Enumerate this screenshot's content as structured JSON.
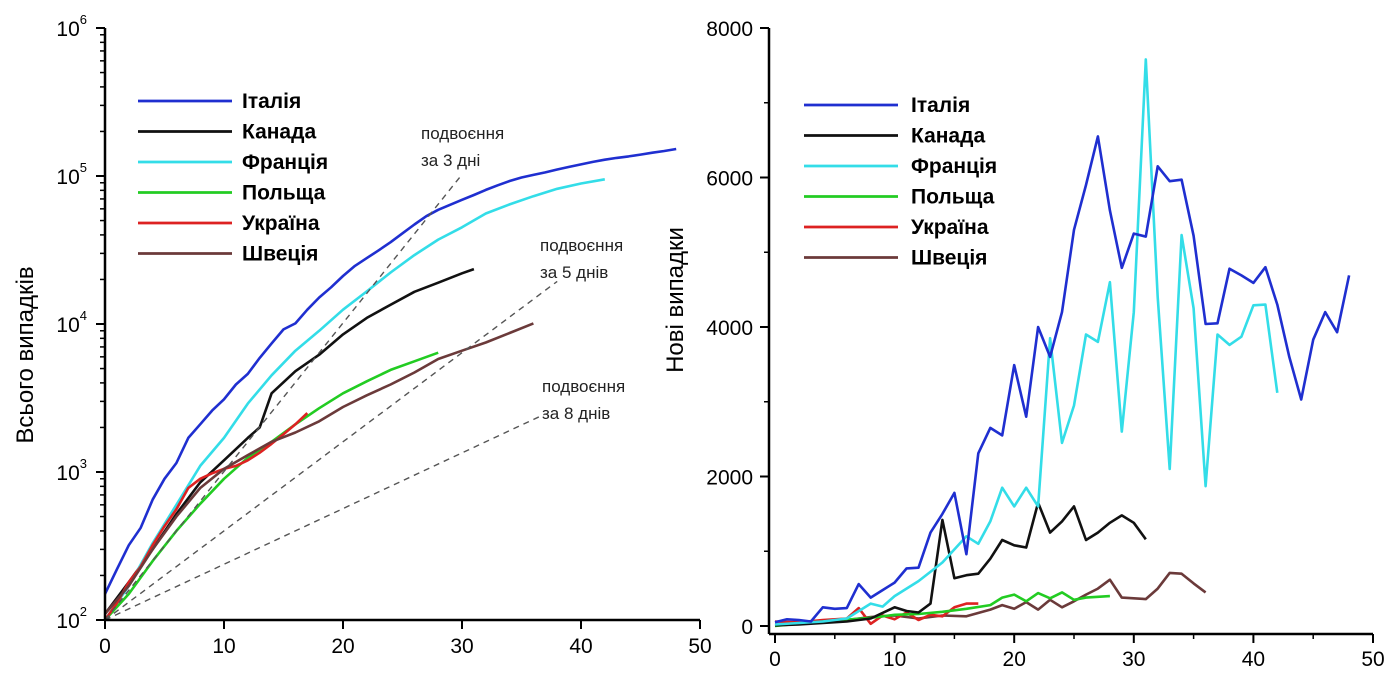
{
  "chart_data": [
    {
      "type": "line",
      "xlabel": "",
      "ylabel": "Всього випадків",
      "xlim": [
        0,
        50
      ],
      "ylim": [
        100,
        1000000
      ],
      "yscale": "log",
      "x_ticks": [
        "0",
        "10",
        "20",
        "30",
        "40",
        "50"
      ],
      "y_ticks": [
        {
          "base": "10",
          "exp": "2"
        },
        {
          "base": "10",
          "exp": "3"
        },
        {
          "base": "10",
          "exp": "4"
        },
        {
          "base": "10",
          "exp": "5"
        },
        {
          "base": "10",
          "exp": "6"
        }
      ],
      "legend_position": "top-left",
      "series": [
        {
          "name": "Італія",
          "color": "#1f2fd0",
          "x": [
            0,
            1,
            2,
            3,
            4,
            5,
            6,
            7,
            8,
            9,
            10,
            11,
            12,
            13,
            14,
            15,
            16,
            17,
            18,
            19,
            20,
            21,
            22,
            23,
            24,
            25,
            26,
            27,
            28,
            29,
            30,
            31,
            32,
            33,
            34,
            35,
            36,
            37,
            38,
            39,
            40,
            41,
            42,
            43,
            44,
            45,
            46,
            47,
            48
          ],
          "y": [
            150,
            220,
            320,
            420,
            650,
            900,
            1150,
            1700,
            2100,
            2600,
            3100,
            3900,
            4600,
            5900,
            7400,
            9200,
            10100,
            12500,
            15100,
            17700,
            21100,
            24700,
            27900,
            31500,
            35700,
            41000,
            47000,
            53500,
            59100,
            63900,
            69100,
            74400,
            80500,
            86500,
            92500,
            97700,
            101700,
            105800,
            110600,
            115200,
            119800,
            124600,
            128900,
            132500,
            135600,
            139400,
            143600,
            147600,
            152300
          ]
        },
        {
          "name": "Канада",
          "color": "#111111",
          "x": [
            0,
            2,
            4,
            6,
            8,
            10,
            12,
            13,
            14,
            16,
            18,
            20,
            22,
            24,
            26,
            28,
            30,
            31
          ],
          "y": [
            110,
            180,
            300,
            520,
            850,
            1200,
            1700,
            2000,
            3400,
            4800,
            6200,
            8500,
            11000,
            13500,
            16500,
            19000,
            22000,
            23500
          ]
        },
        {
          "name": "Франція",
          "color": "#33dde8",
          "x": [
            0,
            2,
            4,
            6,
            8,
            10,
            12,
            14,
            16,
            18,
            20,
            22,
            24,
            26,
            28,
            30,
            32,
            34,
            36,
            38,
            40,
            42
          ],
          "y": [
            100,
            170,
            330,
            600,
            1100,
            1700,
            2900,
            4500,
            6600,
            9000,
            12500,
            16600,
            22300,
            29200,
            37200,
            45000,
            55800,
            64300,
            73000,
            82000,
            89000,
            95000
          ]
        },
        {
          "name": "Польща",
          "color": "#22cc22",
          "x": [
            0,
            2,
            4,
            6,
            8,
            10,
            12,
            14,
            16,
            18,
            20,
            22,
            24,
            26,
            28
          ],
          "y": [
            100,
            150,
            250,
            400,
            610,
            900,
            1250,
            1600,
            2100,
            2700,
            3400,
            4100,
            4900,
            5600,
            6400
          ]
        },
        {
          "name": "Україна",
          "color": "#dd2222",
          "x": [
            0,
            1,
            2,
            3,
            4,
            5,
            6,
            7,
            8,
            9,
            10,
            11,
            12,
            13,
            14,
            15,
            16,
            17
          ],
          "y": [
            100,
            130,
            180,
            230,
            320,
            430,
            560,
            780,
            900,
            980,
            1050,
            1100,
            1200,
            1350,
            1550,
            1800,
            2100,
            2500
          ]
        },
        {
          "name": "Швеція",
          "color": "#6b3a3a",
          "x": [
            0,
            2,
            4,
            6,
            8,
            10,
            12,
            14,
            16,
            18,
            20,
            22,
            24,
            26,
            28,
            30,
            32,
            34,
            36
          ],
          "y": [
            110,
            170,
            300,
            500,
            780,
            1050,
            1300,
            1600,
            1850,
            2200,
            2750,
            3300,
            3900,
            4700,
            5800,
            6600,
            7500,
            8700,
            10100
          ]
        },
        {
          "name": "подвоєння за 3 дні",
          "color": "#555555",
          "dashed": true,
          "x": [
            0,
            30
          ],
          "y": [
            100,
            102400
          ]
        },
        {
          "name": "подвоєння за 5 днів",
          "color": "#555555",
          "dashed": true,
          "x": [
            0,
            38
          ],
          "y": [
            100,
            19400
          ]
        },
        {
          "name": "подвоєння за 8 днів",
          "color": "#555555",
          "dashed": true,
          "x": [
            0,
            37
          ],
          "y": [
            100,
            2470
          ]
        }
      ],
      "annotations": [
        {
          "lines": [
            "подвоєння",
            "за 3 дні"
          ]
        },
        {
          "lines": [
            "подвоєння",
            "за 5 днів"
          ]
        },
        {
          "lines": [
            "подвоєння",
            "за 8 днів"
          ]
        }
      ]
    },
    {
      "type": "line",
      "xlabel": "",
      "ylabel": "Нові випадки",
      "xlim": [
        0,
        50
      ],
      "ylim": [
        0,
        8000
      ],
      "x_ticks": [
        "0",
        "10",
        "20",
        "30",
        "40",
        "50"
      ],
      "y_ticks": [
        "0",
        "2000",
        "4000",
        "6000",
        "8000"
      ],
      "legend_position": "top-left",
      "series": [
        {
          "name": "Італія",
          "color": "#1f2fd0",
          "x": [
            0,
            1,
            2,
            3,
            4,
            5,
            6,
            7,
            8,
            9,
            10,
            11,
            12,
            13,
            14,
            15,
            16,
            17,
            18,
            19,
            20,
            21,
            22,
            23,
            24,
            25,
            26,
            27,
            28,
            29,
            30,
            31,
            32,
            33,
            34,
            35,
            36,
            37,
            38,
            39,
            40,
            41,
            42,
            43,
            44,
            45,
            46,
            47,
            48
          ],
          "y": [
            50,
            90,
            80,
            60,
            250,
            230,
            240,
            560,
            380,
            480,
            580,
            770,
            780,
            1250,
            1500,
            1780,
            960,
            2310,
            2650,
            2550,
            3490,
            2800,
            4000,
            3600,
            4200,
            5300,
            5900,
            6550,
            5560,
            4790,
            5250,
            5210,
            6150,
            5950,
            5970,
            5220,
            4040,
            4050,
            4780,
            4690,
            4590,
            4800,
            4300,
            3600,
            3030,
            3830,
            4200,
            3930,
            4690
          ]
        },
        {
          "name": "Канада",
          "color": "#111111",
          "x": [
            0,
            2,
            4,
            6,
            8,
            10,
            11,
            12,
            13,
            14,
            15,
            16,
            17,
            18,
            19,
            20,
            21,
            22,
            23,
            24,
            25,
            26,
            27,
            28,
            29,
            30,
            31
          ],
          "y": [
            10,
            20,
            40,
            60,
            100,
            250,
            200,
            180,
            300,
            1420,
            640,
            680,
            700,
            900,
            1150,
            1080,
            1050,
            1650,
            1250,
            1400,
            1600,
            1150,
            1250,
            1380,
            1480,
            1380,
            1160
          ]
        },
        {
          "name": "Франція",
          "color": "#33dde8",
          "x": [
            0,
            2,
            4,
            6,
            8,
            9,
            10,
            12,
            14,
            16,
            17,
            18,
            19,
            20,
            21,
            22,
            23,
            24,
            25,
            26,
            27,
            28,
            29,
            30,
            31,
            32,
            33,
            34,
            35,
            36,
            37,
            38,
            39,
            40,
            41,
            42
          ],
          "y": [
            20,
            40,
            60,
            100,
            300,
            260,
            400,
            600,
            850,
            1200,
            1100,
            1400,
            1850,
            1600,
            1850,
            1600,
            3850,
            2450,
            2950,
            3900,
            3800,
            4600,
            2600,
            4200,
            7580,
            4400,
            2100,
            5230,
            4250,
            1870,
            3900,
            3760,
            3870,
            4290,
            4300,
            3120
          ]
        },
        {
          "name": "Польща",
          "color": "#22cc22",
          "x": [
            0,
            4,
            8,
            10,
            12,
            14,
            16,
            18,
            19,
            20,
            21,
            22,
            23,
            24,
            25,
            26,
            27,
            28
          ],
          "y": [
            0,
            60,
            110,
            150,
            160,
            190,
            230,
            280,
            380,
            420,
            330,
            440,
            370,
            450,
            350,
            380,
            390,
            400
          ]
        },
        {
          "name": "Україна",
          "color": "#dd2222",
          "x": [
            0,
            2,
            4,
            6,
            7,
            8,
            9,
            10,
            11,
            12,
            13,
            14,
            15,
            16,
            17
          ],
          "y": [
            60,
            50,
            80,
            100,
            240,
            30,
            140,
            90,
            180,
            80,
            150,
            130,
            250,
            300,
            300
          ]
        },
        {
          "name": "Швеція",
          "color": "#6b3a3a",
          "x": [
            0,
            2,
            4,
            6,
            8,
            10,
            12,
            14,
            16,
            18,
            19,
            20,
            21,
            22,
            23,
            24,
            25,
            26,
            27,
            28,
            29,
            30,
            31,
            32,
            33,
            34,
            35,
            36
          ],
          "y": [
            20,
            30,
            50,
            80,
            120,
            140,
            100,
            140,
            130,
            220,
            280,
            230,
            320,
            220,
            350,
            250,
            330,
            420,
            500,
            620,
            380,
            370,
            360,
            500,
            710,
            700,
            570,
            450
          ]
        }
      ]
    }
  ]
}
